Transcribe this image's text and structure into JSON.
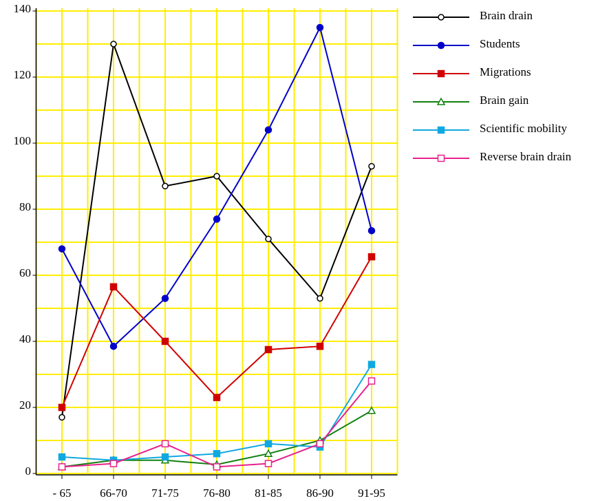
{
  "chart_data": {
    "type": "line",
    "categories": [
      "- 65",
      "66-70",
      "71-75",
      "76-80",
      "81-85",
      "86-90",
      "91-95"
    ],
    "series": [
      {
        "name": "Brain drain",
        "color": "#000000",
        "marker": "open-circle",
        "values": [
          17,
          130,
          87,
          90,
          71,
          53,
          93
        ]
      },
      {
        "name": "Students",
        "color": "#0000c8",
        "marker": "circle",
        "values": [
          68,
          38.5,
          53,
          77,
          104,
          135,
          73.5
        ]
      },
      {
        "name": "Migrations",
        "color": "#d00000",
        "marker": "square",
        "values": [
          20,
          56.5,
          40,
          23,
          37.5,
          38.5,
          65.6
        ]
      },
      {
        "name": "Brain gain",
        "color": "#108010",
        "marker": "open-triangle",
        "values": [
          2,
          4,
          4,
          2.7,
          6,
          10,
          19
        ]
      },
      {
        "name": "Scientific mobility",
        "color": "#10a8e0",
        "marker": "square",
        "values": [
          5,
          4,
          5,
          6,
          9,
          8,
          33
        ]
      },
      {
        "name": "Reverse brain drain",
        "color": "#e8208c",
        "marker": "open-square",
        "values": [
          2,
          3,
          9,
          2,
          3,
          9,
          28
        ]
      }
    ],
    "ylim": [
      0,
      140
    ],
    "yticks": [
      0,
      20,
      40,
      60,
      80,
      100,
      120,
      140
    ],
    "grid": true,
    "grid_color": "#ffee00",
    "legend": "right"
  }
}
